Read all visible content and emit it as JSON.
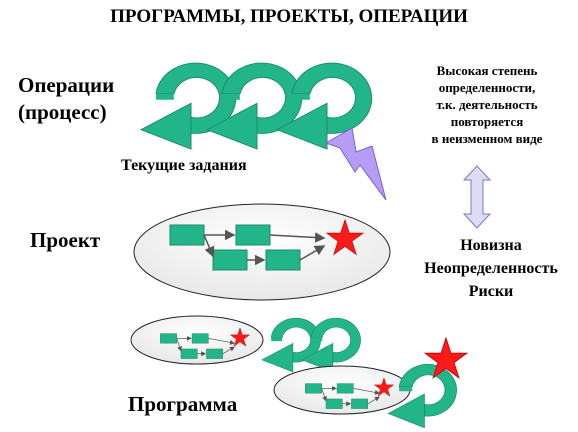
{
  "title": "ПРОГРАММЫ, ПРОЕКТЫ, ОПЕРАЦИИ",
  "operations": {
    "line1": "Операции",
    "line2": "(процесс)"
  },
  "current_tasks": "Текущие задания",
  "project": "Проект",
  "program": "Программа",
  "certainty": {
    "line1": "Высокая степень",
    "line2": "определенности,",
    "line3": "т.к. деятельность",
    "line4": "повторяется",
    "line5": "в неизменном виде"
  },
  "novelty": {
    "line1": "Новизна",
    "line2": "Неопределенность",
    "line3": "Риски"
  },
  "colors": {
    "cycle_arrow": "#23b58a",
    "box": "#23b58a",
    "star": "#ff1a1a",
    "lightning": "#b69cf5",
    "double_arrow": "#dcdcf7",
    "ellipse": "#f6f6f6"
  }
}
